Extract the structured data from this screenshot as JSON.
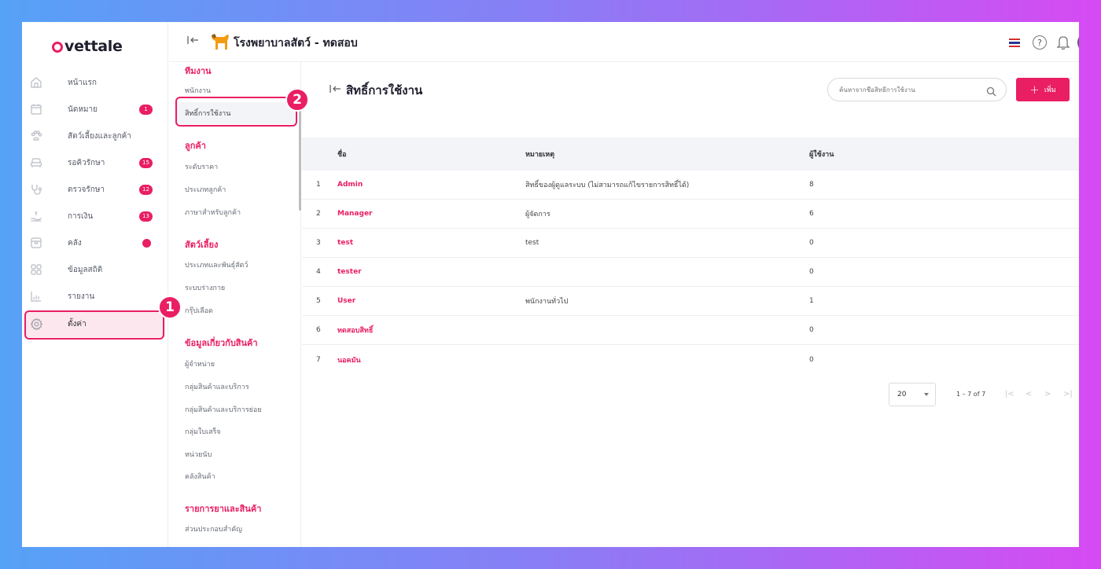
{
  "logo": {
    "text": "vettale"
  },
  "nav": [
    {
      "label": "หน้าแรก",
      "icon": "home-icon"
    },
    {
      "label": "นัดหมาย",
      "icon": "calendar-icon",
      "badge": "1"
    },
    {
      "label": "สัตว์เลี้ยงและลูกค้า",
      "icon": "paw-icon"
    },
    {
      "label": "รอคิวรักษา",
      "icon": "couch-icon",
      "badge": "15"
    },
    {
      "label": "ตรวจรักษา",
      "icon": "stethoscope-icon",
      "badge": "12"
    },
    {
      "label": "การเงิน",
      "icon": "payment-hand-icon",
      "badge": "13"
    },
    {
      "label": "คลัง",
      "icon": "box-icon",
      "dot": true
    },
    {
      "label": "ข้อมูลสถิติ",
      "icon": "grid-icon"
    },
    {
      "label": "รายงาน",
      "icon": "bar-chart-icon"
    },
    {
      "label": "ตั้งค่า",
      "icon": "gear-icon",
      "active": true
    }
  ],
  "markers": {
    "one": "1",
    "two": "2"
  },
  "header": {
    "title": "โรงพยาบาลสัตว์ - ทดสอบ"
  },
  "sub_nav": {
    "sections": [
      {
        "title": "ทีมงาน",
        "items": [
          "พนักงาน",
          "สิทธิ์การใช้งาน"
        ]
      },
      {
        "title": "ลูกค้า",
        "items": [
          "ระดับราคา",
          "ประเภทลูกค้า",
          "ภาษาสำหรับลูกค้า"
        ]
      },
      {
        "title": "สัตว์เลี้ยง",
        "items": [
          "ประเภทและพันธุ์สัตว์",
          "ระบบร่างกาย",
          "กรุ๊ปเลือด"
        ]
      },
      {
        "title": "ข้อมูลเกี่ยวกับสินค้า",
        "items": [
          "ผู้จำหน่าย",
          "กลุ่มสินค้าและบริการ",
          "กลุ่มสินค้าและบริการย่อย",
          "กลุ่มใบเสร็จ",
          "หน่วยนับ",
          "คลังสินค้า"
        ]
      },
      {
        "title": "รายการยาและสินค้า",
        "items": [
          "ส่วนประกอบสำคัญ"
        ]
      }
    ]
  },
  "main": {
    "title": "สิทธิ์การใช้งาน",
    "search_placeholder": "ค้นหาจากชื่อสิทธิ์การใช้งาน",
    "add_label": "เพิ่ม"
  },
  "table": {
    "headers": {
      "name": "ชื่อ",
      "note": "หมายเหตุ",
      "users": "ผู้ใช้งาน"
    },
    "rows": [
      {
        "idx": "1",
        "name": "Admin",
        "note": "สิทธิ์ของผู้ดูแลระบบ (ไม่สามารถแก้ไขรายการสิทธิ์ได้)",
        "users": "8"
      },
      {
        "idx": "2",
        "name": "Manager",
        "note": "ผู้จัดการ",
        "users": "6"
      },
      {
        "idx": "3",
        "name": "test",
        "note": "test",
        "users": "0"
      },
      {
        "idx": "4",
        "name": "tester",
        "note": "",
        "users": "0"
      },
      {
        "idx": "5",
        "name": "User",
        "note": "พนักงานทั่วไป",
        "users": "1"
      },
      {
        "idx": "6",
        "name": "ทดสอบสิทธิ์",
        "note": "",
        "users": "0"
      },
      {
        "idx": "7",
        "name": "นอคมัน",
        "note": "",
        "users": "0"
      }
    ]
  },
  "pagination": {
    "page_size": "20",
    "range": "1 – 7 of 7"
  },
  "colors": {
    "accent": "#e91e63",
    "header_bg": "#f3f4f7"
  }
}
